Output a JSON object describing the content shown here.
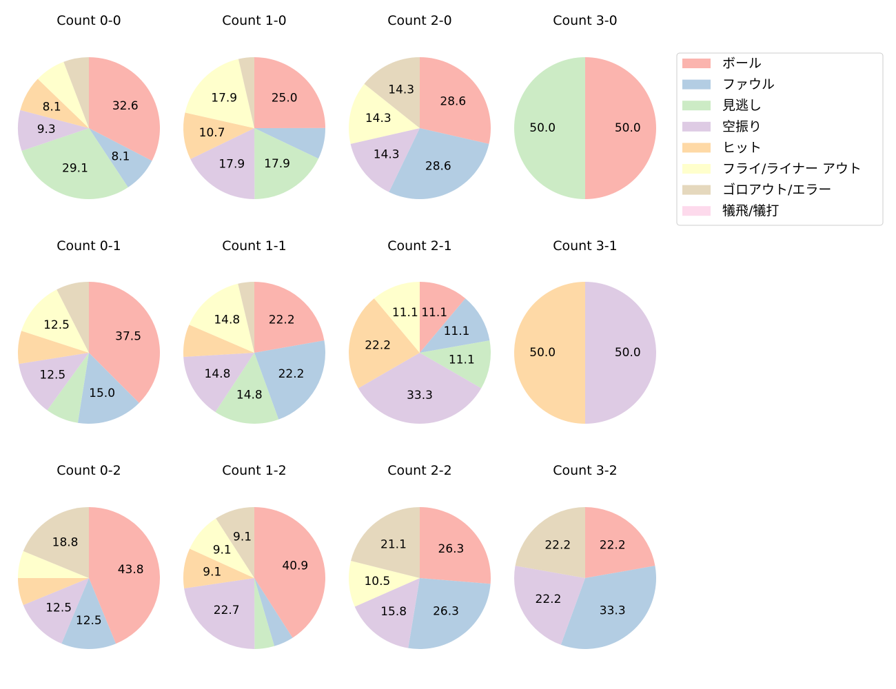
{
  "chart_data": {
    "type": "pie",
    "legend": {
      "placement": "right",
      "entries": [
        "ボール",
        "ファウル",
        "見逃し",
        "空振り",
        "ヒット",
        "フライ/ライナー アウト",
        "ゴロアウト/エラー",
        "犠飛/犠打"
      ]
    },
    "colors": [
      "#fbb4ae",
      "#b3cde3",
      "#ccebc5",
      "#decbe4",
      "#fed9a6",
      "#ffffcc",
      "#e5d8bd",
      "#fddaec"
    ],
    "start_angle": "top",
    "direction": "clockwise",
    "charts": [
      {
        "title": "Count 0-0",
        "values": [
          32.6,
          8.1,
          29.1,
          9.3,
          8.1,
          7.0,
          5.8,
          0
        ]
      },
      {
        "title": "Count 1-0",
        "values": [
          25.0,
          7.1,
          17.9,
          17.9,
          10.7,
          17.9,
          3.6,
          0
        ]
      },
      {
        "title": "Count 2-0",
        "values": [
          28.6,
          28.6,
          0,
          14.3,
          0,
          14.3,
          14.3,
          0
        ]
      },
      {
        "title": "Count 3-0",
        "values": [
          50.0,
          0,
          50.0,
          0,
          0,
          0,
          0,
          0
        ]
      },
      {
        "title": "Count 0-1",
        "values": [
          37.5,
          15.0,
          7.5,
          12.5,
          7.5,
          12.5,
          7.5,
          0
        ]
      },
      {
        "title": "Count 1-1",
        "values": [
          22.2,
          22.2,
          14.8,
          14.8,
          7.4,
          14.8,
          3.7,
          0
        ]
      },
      {
        "title": "Count 2-1",
        "values": [
          11.1,
          11.1,
          11.1,
          33.3,
          22.2,
          11.1,
          0,
          0
        ]
      },
      {
        "title": "Count 3-1",
        "values": [
          0,
          0,
          0,
          50.0,
          50.0,
          0,
          0,
          0
        ]
      },
      {
        "title": "Count 0-2",
        "values": [
          43.8,
          12.5,
          0,
          12.5,
          6.2,
          6.2,
          18.8,
          0
        ]
      },
      {
        "title": "Count 1-2",
        "values": [
          40.9,
          4.5,
          4.5,
          22.7,
          9.1,
          9.1,
          9.1,
          0
        ]
      },
      {
        "title": "Count 2-2",
        "values": [
          26.3,
          26.3,
          0,
          15.8,
          0,
          10.5,
          21.1,
          0
        ]
      },
      {
        "title": "Count 3-2",
        "values": [
          22.2,
          33.3,
          0,
          22.2,
          0,
          0,
          22.2,
          0
        ]
      }
    ]
  }
}
